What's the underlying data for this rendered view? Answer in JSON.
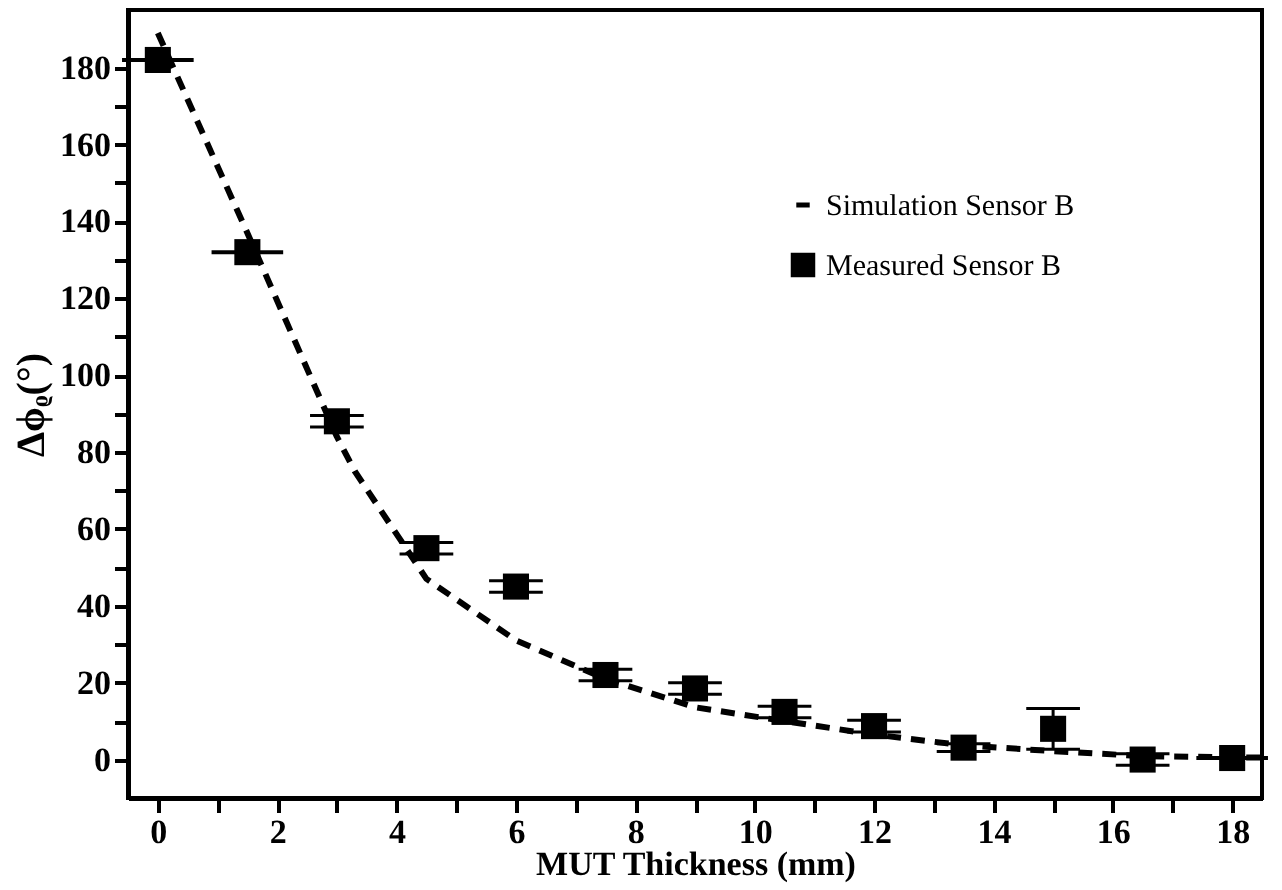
{
  "chart_data": {
    "type": "scatter",
    "xlabel": "MUT Thickness (mm)",
    "ylabel": "Δϕᵨ(°)",
    "xlim": [
      -0.5,
      18.5
    ],
    "ylim": [
      -10,
      195
    ],
    "xticks": [
      0,
      {
        "value": 1,
        "label": null
      },
      2,
      {
        "value": 3,
        "label": null
      },
      4,
      {
        "value": 5,
        "label": null
      },
      6,
      {
        "value": 7,
        "label": null
      },
      8,
      {
        "value": 9,
        "label": null
      },
      10,
      {
        "value": 11,
        "label": null
      },
      12,
      {
        "value": 13,
        "label": null
      },
      14,
      {
        "value": 15,
        "label": null
      },
      16,
      {
        "value": 17,
        "label": null
      },
      18
    ],
    "yticks": [
      0,
      {
        "value": 10,
        "label": null
      },
      20,
      {
        "value": 30,
        "label": null
      },
      40,
      {
        "value": 50,
        "label": null
      },
      60,
      {
        "value": 70,
        "label": null
      },
      80,
      {
        "value": 90,
        "label": null
      },
      100,
      {
        "value": 110,
        "label": null
      },
      120,
      {
        "value": 130,
        "label": null
      },
      140,
      {
        "value": 150,
        "label": null
      },
      160,
      {
        "value": 170,
        "label": null
      },
      180
    ],
    "grid": false,
    "legend": "top right",
    "series": [
      {
        "name": "Simulation Sensor B",
        "type": "line",
        "line_style": "dashed",
        "marker": "none",
        "color": "#000000",
        "x": [
          0,
          1.5,
          3,
          3.3,
          4.5,
          6,
          7.5,
          9,
          10.5,
          12,
          13.5,
          15,
          16.5,
          18.5
        ],
        "values": [
          189,
          137,
          84,
          75,
          47,
          31,
          21,
          13.6,
          10,
          6.5,
          3.7,
          2.2,
          0.9,
          0.5
        ]
      },
      {
        "name": "Measured Sensor B",
        "type": "scatter",
        "marker": "square",
        "color": "#000000",
        "x": [
          0,
          1.5,
          3,
          4.5,
          6,
          7.5,
          9,
          10.5,
          12,
          13.5,
          15,
          16.5,
          18
        ],
        "values": [
          182,
          132,
          88,
          55,
          45,
          22,
          18.5,
          12.4,
          8.7,
          3.1,
          8,
          0,
          0.4
        ],
        "errors": [
          null,
          null,
          1.5,
          1.5,
          1.5,
          1.5,
          1.5,
          1.5,
          1.5,
          1,
          5.3,
          1.5,
          null
        ],
        "xerrors": [
          0.6,
          0.6,
          null,
          null,
          null,
          null,
          null,
          null,
          null,
          null,
          null,
          null,
          0.6
        ]
      }
    ]
  }
}
